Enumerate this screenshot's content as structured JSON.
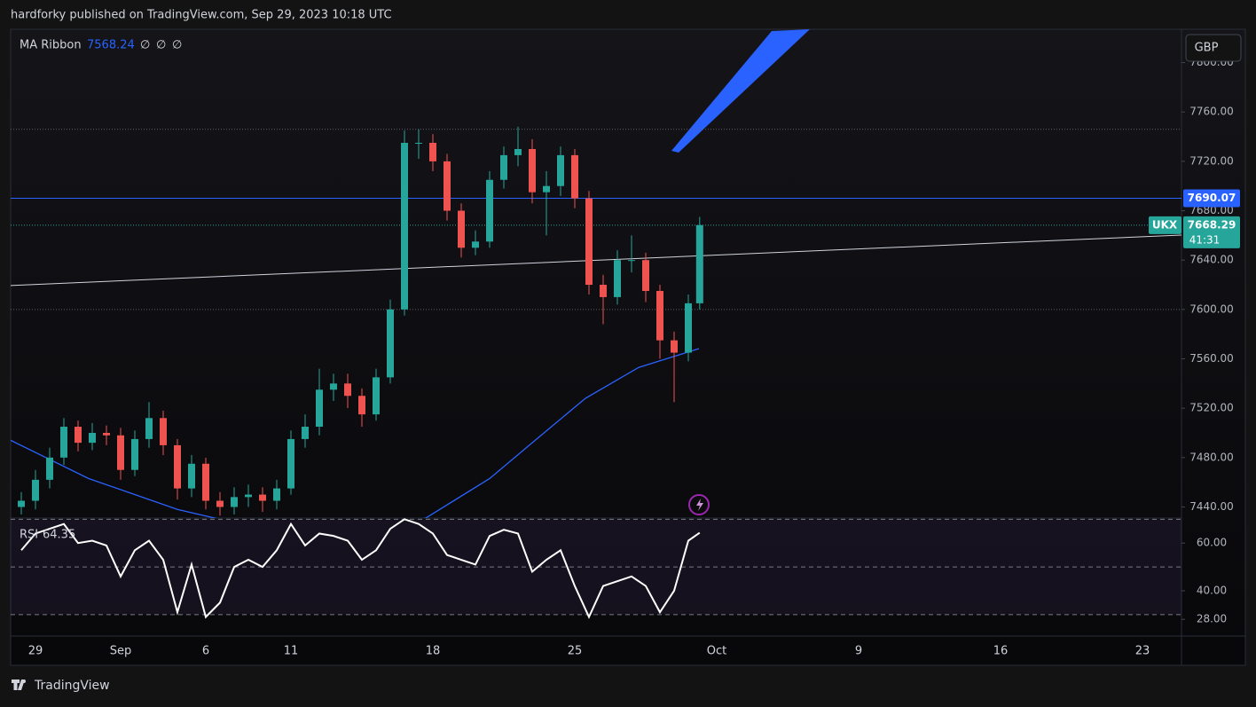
{
  "header": {
    "published": "hardforky published on TradingView.com, Sep 29, 2023 10:18 UTC"
  },
  "footer": {
    "brand": "TradingView"
  },
  "currency": "GBP",
  "chart_data": [
    {
      "type": "candlestick",
      "symbol": "UKX",
      "indicator_name": "MA Ribbon",
      "indicator_placeholders": [
        "∅",
        "∅",
        "∅"
      ],
      "up_color": "#26a69a",
      "down_color": "#ef5350",
      "x": [
        -0.5,
        0,
        0.5,
        1,
        1.5,
        2,
        2.5,
        3,
        3.5,
        4,
        4.5,
        5,
        5.5,
        6,
        6.5,
        7,
        7.5,
        8,
        8.5,
        9,
        9.5,
        10,
        10.5,
        11,
        11.5,
        12,
        12.5,
        13,
        13.5,
        14,
        14.5,
        15,
        15.5,
        16,
        16.5,
        17,
        17.5,
        18,
        18.5,
        19,
        19.5,
        20,
        20.5,
        21,
        21.5,
        22,
        22.5,
        23,
        23.4
      ],
      "open": [
        7440,
        7445,
        7462,
        7480,
        7505,
        7492,
        7500,
        7498,
        7470,
        7495,
        7512,
        7490,
        7455,
        7475,
        7445,
        7440,
        7448,
        7450,
        7445,
        7455,
        7495,
        7505,
        7535,
        7540,
        7530,
        7515,
        7545,
        7600,
        7735,
        7735,
        7720,
        7680,
        7650,
        7655,
        7705,
        7725,
        7730,
        7695,
        7700,
        7725,
        7690,
        7620,
        7610,
        7640,
        7640,
        7615,
        7575,
        7565,
        7605
      ],
      "high": [
        7452,
        7470,
        7488,
        7512,
        7510,
        7508,
        7506,
        7504,
        7502,
        7525,
        7518,
        7495,
        7482,
        7480,
        7452,
        7456,
        7458,
        7456,
        7462,
        7502,
        7515,
        7552,
        7548,
        7548,
        7536,
        7552,
        7608,
        7745,
        7746,
        7742,
        7726,
        7686,
        7664,
        7712,
        7732,
        7748,
        7738,
        7712,
        7732,
        7730,
        7696,
        7628,
        7648,
        7660,
        7646,
        7620,
        7582,
        7612,
        7675
      ],
      "low": [
        7434,
        7438,
        7455,
        7474,
        7485,
        7486,
        7490,
        7462,
        7465,
        7488,
        7482,
        7446,
        7448,
        7438,
        7433,
        7434,
        7440,
        7436,
        7438,
        7450,
        7488,
        7498,
        7526,
        7520,
        7505,
        7510,
        7540,
        7595,
        7722,
        7712,
        7672,
        7642,
        7644,
        7650,
        7698,
        7716,
        7686,
        7660,
        7692,
        7682,
        7612,
        7588,
        7604,
        7630,
        7606,
        7560,
        7525,
        7558,
        7600
      ],
      "close": [
        7445,
        7462,
        7480,
        7505,
        7492,
        7500,
        7498,
        7470,
        7495,
        7512,
        7490,
        7455,
        7475,
        7445,
        7440,
        7448,
        7450,
        7445,
        7455,
        7495,
        7505,
        7535,
        7540,
        7530,
        7515,
        7545,
        7600,
        7735,
        7735,
        7720,
        7680,
        7650,
        7655,
        7705,
        7725,
        7730,
        7695,
        7700,
        7725,
        7690,
        7620,
        7610,
        7640,
        7640,
        7615,
        7575,
        7565,
        7605,
        7668.29
      ],
      "price_timer": "41:31",
      "ma": {
        "color": "#2962ff",
        "x": [
          -0.875,
          1.875,
          5,
          8,
          11,
          13.75,
          16,
          17.5,
          19.375,
          21.25,
          23.375
        ],
        "values": [
          7494,
          7463,
          7438,
          7422,
          7418,
          7431,
          7463,
          7492,
          7528,
          7553,
          7568.24
        ]
      },
      "level_lines": [
        {
          "value": 7690.07,
          "color": "#2962ff"
        }
      ],
      "dotted_levels": [
        7746,
        7600
      ],
      "trendline": {
        "color": "#d1d4dc",
        "x": [
          -0.875,
          40.375
        ],
        "values": [
          7619.4,
          7660.3
        ]
      },
      "xlim": [
        -0.875,
        40.375
      ],
      "xticks": [
        {
          "value": 0,
          "label": "29"
        },
        {
          "value": 3,
          "label": "Sep"
        },
        {
          "value": 6,
          "label": "6"
        },
        {
          "value": 9,
          "label": "11"
        },
        {
          "value": 14,
          "label": "18"
        },
        {
          "value": 19,
          "label": "25"
        },
        {
          "value": 24,
          "label": "Oct"
        },
        {
          "value": 29,
          "label": "9"
        },
        {
          "value": 34,
          "label": "16"
        },
        {
          "value": 39,
          "label": "23"
        }
      ],
      "ylim": [
        7431,
        7827
      ],
      "yticks": [
        {
          "value": 7440,
          "label": "7440.00"
        },
        {
          "value": 7480,
          "label": "7480.00"
        },
        {
          "value": 7520,
          "label": "7520.00"
        },
        {
          "value": 7560,
          "label": "7560.00"
        },
        {
          "value": 7600,
          "label": "7600.00"
        },
        {
          "value": 7640,
          "label": "7640.00"
        },
        {
          "value": 7680,
          "label": "7680.00"
        },
        {
          "value": 7720,
          "label": "7720.00"
        },
        {
          "value": 7760,
          "label": "7760.00"
        },
        {
          "value": 7800,
          "label": "7800.00"
        }
      ]
    },
    {
      "type": "line",
      "name": "RSI",
      "color": "#ffffff",
      "x": [
        -0.5,
        0,
        0.5,
        1,
        1.5,
        2,
        2.5,
        3,
        3.5,
        4,
        4.5,
        5,
        5.5,
        6,
        6.5,
        7,
        7.5,
        8,
        8.5,
        9,
        9.5,
        10,
        10.5,
        11,
        11.5,
        12,
        12.5,
        13,
        13.5,
        14,
        14.5,
        15,
        15.5,
        16,
        16.5,
        17,
        17.5,
        18,
        18.5,
        19,
        19.5,
        20,
        20.5,
        21,
        21.5,
        22,
        22.5,
        23,
        23.4
      ],
      "values": [
        57,
        64,
        66,
        68,
        60,
        61,
        59,
        46,
        57,
        61,
        53,
        31,
        51,
        29,
        35,
        50,
        53,
        50,
        57,
        68,
        59,
        64,
        63,
        61,
        53,
        57,
        66,
        70,
        68,
        64,
        55,
        53,
        51,
        63,
        65.6,
        64,
        48,
        53,
        57,
        42,
        29,
        42,
        44,
        46,
        42,
        31,
        40,
        61,
        64.35
      ],
      "bands": [
        70,
        50,
        30
      ],
      "ylim": [
        21,
        70.5
      ],
      "yticks": [
        {
          "value": 60,
          "label": "60.00"
        },
        {
          "value": 40,
          "label": "40.00"
        },
        {
          "value": 28,
          "label": "28.00"
        }
      ]
    }
  ]
}
